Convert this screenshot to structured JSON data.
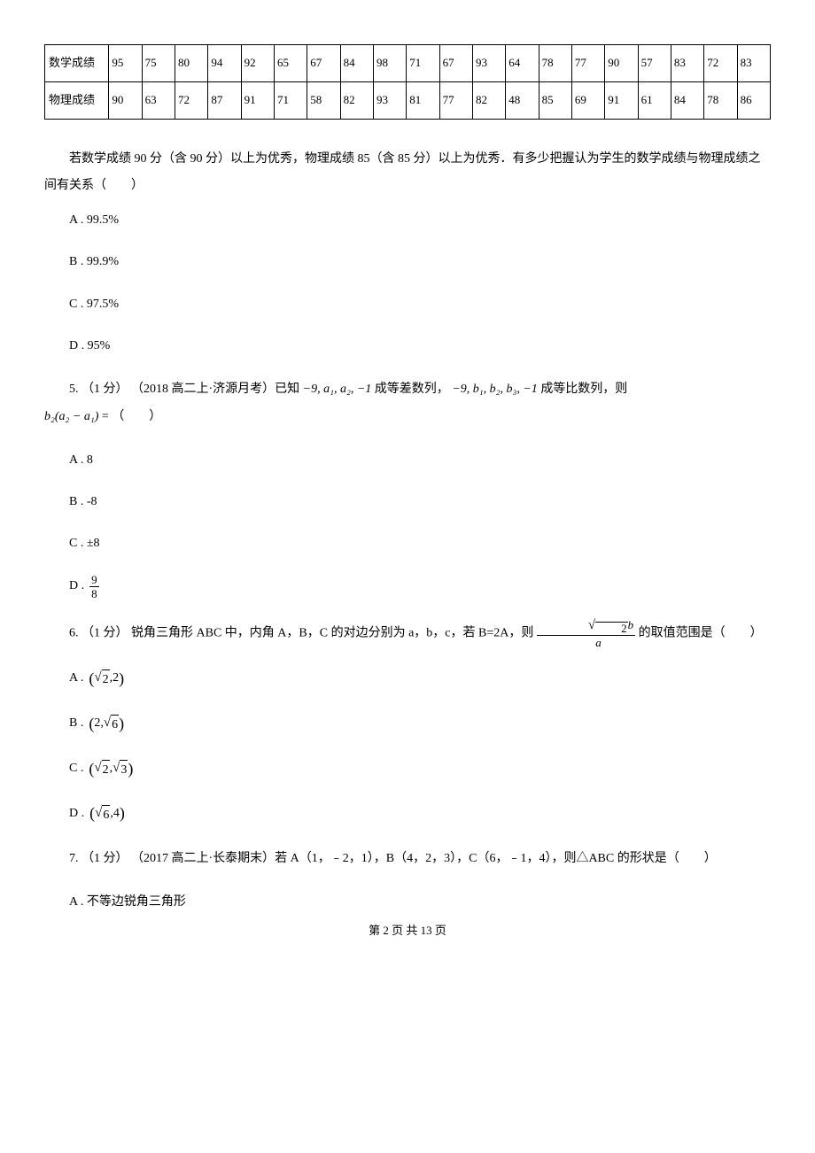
{
  "table": {
    "rows": [
      {
        "label": "数学成绩",
        "values": [
          "95",
          "75",
          "80",
          "94",
          "92",
          "65",
          "67",
          "84",
          "98",
          "71",
          "67",
          "93",
          "64",
          "78",
          "77",
          "90",
          "57",
          "83",
          "72",
          "83"
        ]
      },
      {
        "label": "物理成绩",
        "values": [
          "90",
          "63",
          "72",
          "87",
          "91",
          "71",
          "58",
          "82",
          "93",
          "81",
          "77",
          "82",
          "48",
          "85",
          "69",
          "91",
          "61",
          "84",
          "78",
          "86"
        ]
      }
    ]
  },
  "q4": {
    "text": "若数学成绩 90 分（含 90 分）以上为优秀，物理成绩 85（含 85 分）以上为优秀．有多少把握认为学生的数学成绩与物理成绩之间有关系（　　）",
    "options": {
      "a": "A . 99.5%",
      "b": "B . 99.9%",
      "c": "C . 97.5%",
      "d": "D . 95%"
    }
  },
  "q5": {
    "prefix": "5. （1 分） （2018 高二上·济源月考）已知 ",
    "expr1": "−9, a₁, a₂, −1",
    "mid1": " 成等差数列， ",
    "expr2": "−9, b₁, b₂, b₃, −1",
    "mid2": " 成等比数列，则",
    "expr3_prefix": "b₂(a₂ − a₁)",
    "expr3_suffix": " = （　　）",
    "options": {
      "a": "A . 8",
      "b": "B . -8",
      "c": "C . ±8",
      "d_label": "D . ",
      "d_num": "9",
      "d_den": "8"
    }
  },
  "q6": {
    "text_part1": "6. （1 分） 锐角三角形 ABC 中，内角 A，B，C 的对边分别为 a，b，c，若 B=2A，则 ",
    "text_part2": " 的取值范围是（　　）",
    "frac_num_sqrt": "2",
    "frac_num_var": "b",
    "frac_den": "a",
    "options": {
      "a_label": "A . ",
      "a_sqrt": "2",
      "a_v2": "2",
      "b_label": "B . ",
      "b_v1": "2",
      "b_sqrt": "6",
      "c_label": "C . ",
      "c_sqrt1": "2",
      "c_sqrt2": "3",
      "d_label": "D . ",
      "d_sqrt": "6",
      "d_v2": "4"
    }
  },
  "q7": {
    "text": "7. （1 分） （2017 高二上·长泰期末）若 A（1，﹣2，1），B（4，2，3），C（6，﹣1，4），则△ABC 的形状是（　　）",
    "options": {
      "a": "A . 不等边锐角三角形"
    }
  },
  "footer": "第 2 页 共 13 页"
}
